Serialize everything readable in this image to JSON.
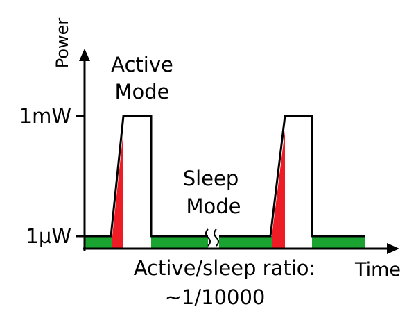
{
  "labels": {
    "y_axis": "Power",
    "x_axis": "Time",
    "active_line1": "Active",
    "active_line2": "Mode",
    "sleep_line1": "Sleep",
    "sleep_line2": "Mode",
    "tick_high": "1mW",
    "tick_low": "1µW",
    "ratio_line1": "Active/sleep ratio:",
    "ratio_line2": "~1/10000"
  },
  "colors": {
    "sleep": "#1aa331",
    "ramp": "#ee1c24",
    "axis": "#000000"
  }
}
